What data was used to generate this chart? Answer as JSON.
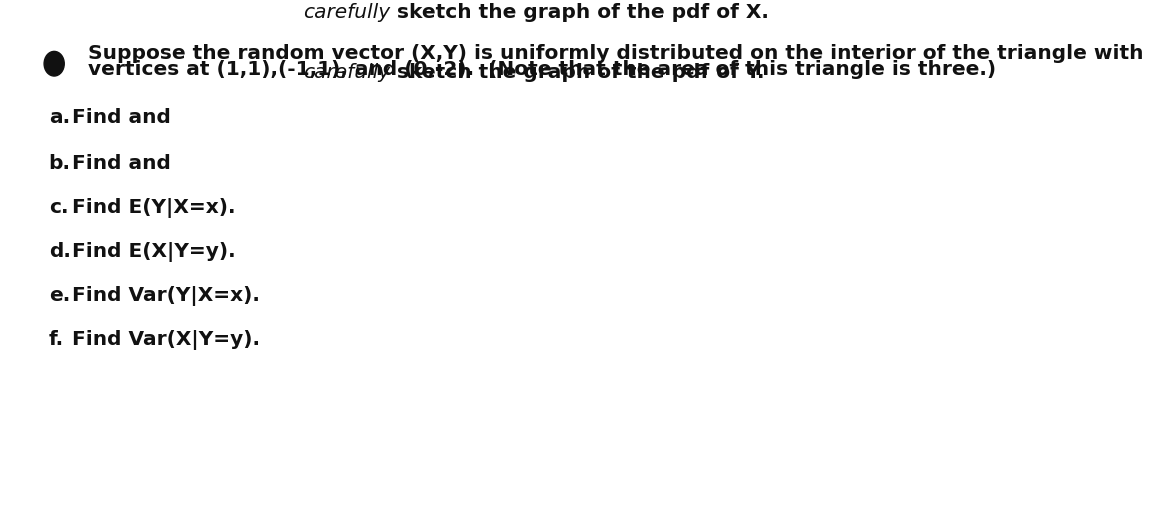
{
  "background_color": "#ffffff",
  "text_color": "#111111",
  "font_size": 14.5,
  "bullet_color": "#111111",
  "intro_line1": "Suppose the random vector (X,Y) is uniformly distributed on the interior of the triangle with",
  "intro_line2": "vertices at (1,1),(-1,1), and (0,-2).  (Note that the area of this triangle is three.)",
  "items": [
    {
      "label": "a.",
      "pre": "Find and ",
      "italic": "carefully",
      "post": " sketch the graph of the pdf of X.",
      "has_italic": true
    },
    {
      "label": "b.",
      "pre": "Find and ",
      "italic": "carefully",
      "post": " sketch the graph of the pdf of Y.",
      "has_italic": true
    },
    {
      "label": "c.",
      "pre": "Find E(Y|X=x).",
      "italic": null,
      "post": null,
      "has_italic": false
    },
    {
      "label": "d.",
      "pre": "Find E(X|Y=y).",
      "italic": null,
      "post": null,
      "has_italic": false
    },
    {
      "label": "e.",
      "pre": "Find Var(Y|X=x).",
      "italic": null,
      "post": null,
      "has_italic": false
    },
    {
      "label": "f.",
      "pre": "Find Var(X|Y=y).",
      "italic": null,
      "post": null,
      "has_italic": false
    }
  ]
}
